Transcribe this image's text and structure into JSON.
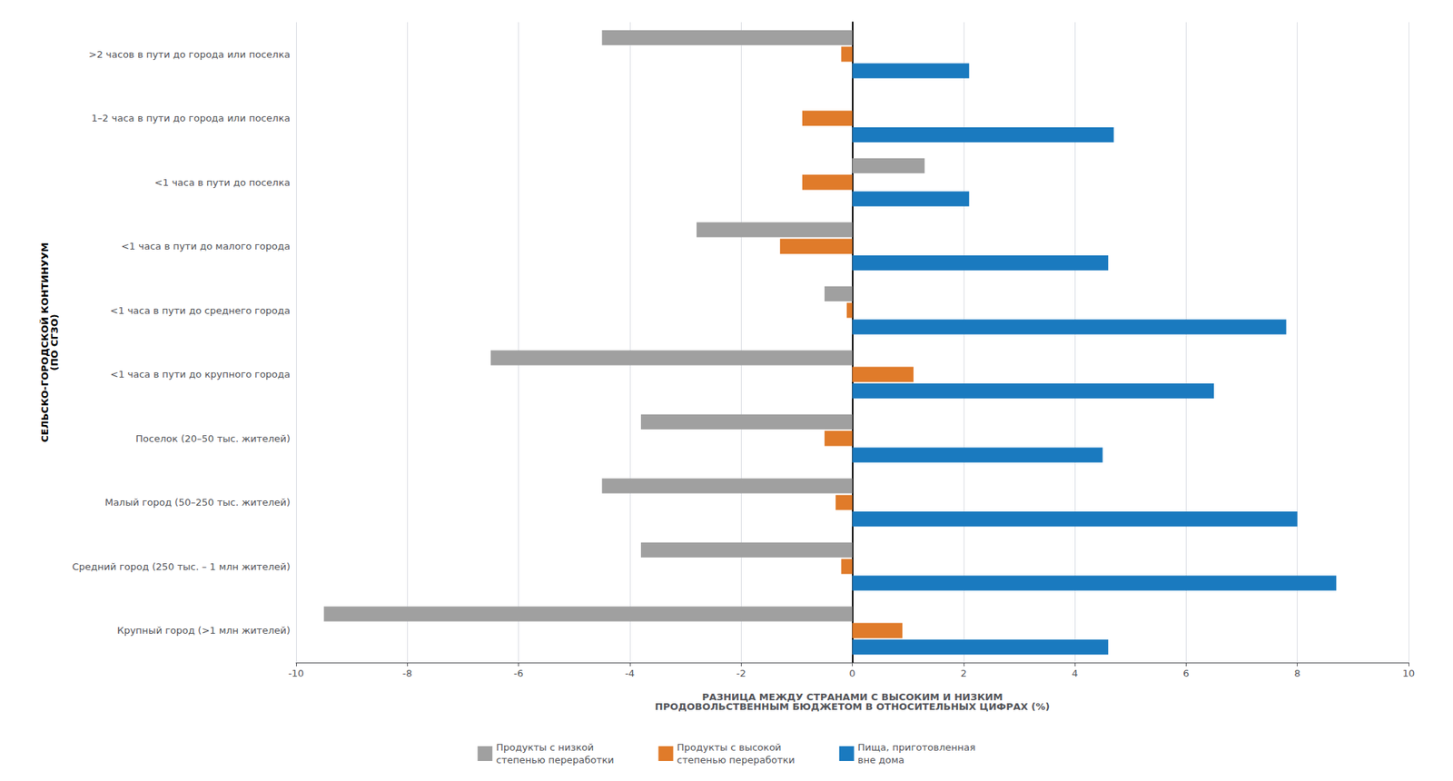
{
  "chart_data": {
    "type": "bar",
    "orientation": "horizontal",
    "categories": [
      "Крупный город (>1 млн жителей)",
      "Средний город (250 тыс. – 1 млн жителей)",
      "Малый город (50–250 тыс. жителей)",
      "Поселок (20–50 тыс. жителей)",
      "<1 часа в пути до крупного города",
      "<1 часа в пути до среднего города",
      "<1 часа в пути до малого города",
      "<1 часа в пути до поселка",
      "1–2 часа в пути до города или поселка",
      ">2 часов в пути до города или поселка"
    ],
    "series": [
      {
        "name": "Продукты с низкой\nстепенью переработки",
        "color": "#a0a0a0",
        "values": [
          -9.5,
          -3.8,
          -4.5,
          -3.8,
          -6.5,
          -0.5,
          -2.8,
          1.3,
          0.0,
          -4.5
        ]
      },
      {
        "name": "Продукты с высокой\nстепенью переработки",
        "color": "#e07b2a",
        "values": [
          0.9,
          -0.2,
          -0.3,
          -0.5,
          1.1,
          -0.1,
          -1.3,
          -0.9,
          -0.9,
          -0.2
        ]
      },
      {
        "name": "Пища, приготовленная\nвне дома",
        "color": "#1a7abf",
        "values": [
          4.6,
          8.7,
          8.0,
          4.5,
          6.5,
          7.8,
          4.6,
          2.1,
          4.7,
          2.1
        ]
      }
    ],
    "xlim": [
      -10,
      10
    ],
    "xticks": [
      -10,
      -8,
      -6,
      -4,
      -2,
      0,
      2,
      4,
      6,
      8,
      10
    ],
    "xlabel": "РАЗНИЦА МЕЖДУ СТРАНАМИ С ВЫСОКИМ И НИЗКИМ\nПРОДОВОЛЬСТВЕННЫМ БЮДЖЕТОМ В ОТНОСИТЕЛЬНЫХ ЦИФРАХ (%)",
    "ylabel": "СЕЛЬСКО-ГОРОДСКОЙ КОНТИНУУМ\n(ПО СГЗО)",
    "grid": true,
    "legend": "bottom"
  }
}
